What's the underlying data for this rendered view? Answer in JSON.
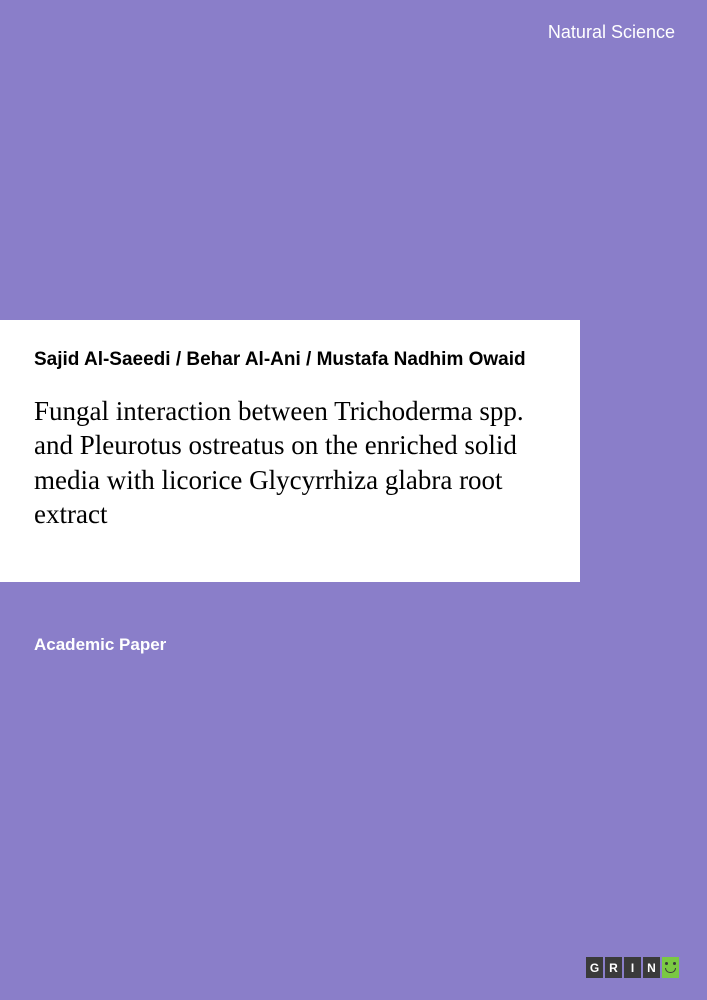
{
  "category": "Natural Science",
  "authors": "Sajid Al-Saeedi / Behar Al-Ani / Mustafa Nadhim Owaid",
  "title": "Fungal interaction between Trichoderma spp. and Pleurotus ostreatus on the enriched solid media with licorice Glycyrrhiza glabra root extract",
  "doc_type": "Academic Paper",
  "logo": {
    "letters": [
      "G",
      "R",
      "I",
      "N"
    ]
  },
  "colors": {
    "background": "#8a7ec9",
    "panel": "#ffffff",
    "text_primary": "#000000",
    "text_light": "#ffffff",
    "logo_box": "#3a3a3a",
    "logo_smile": "#7ac943"
  }
}
